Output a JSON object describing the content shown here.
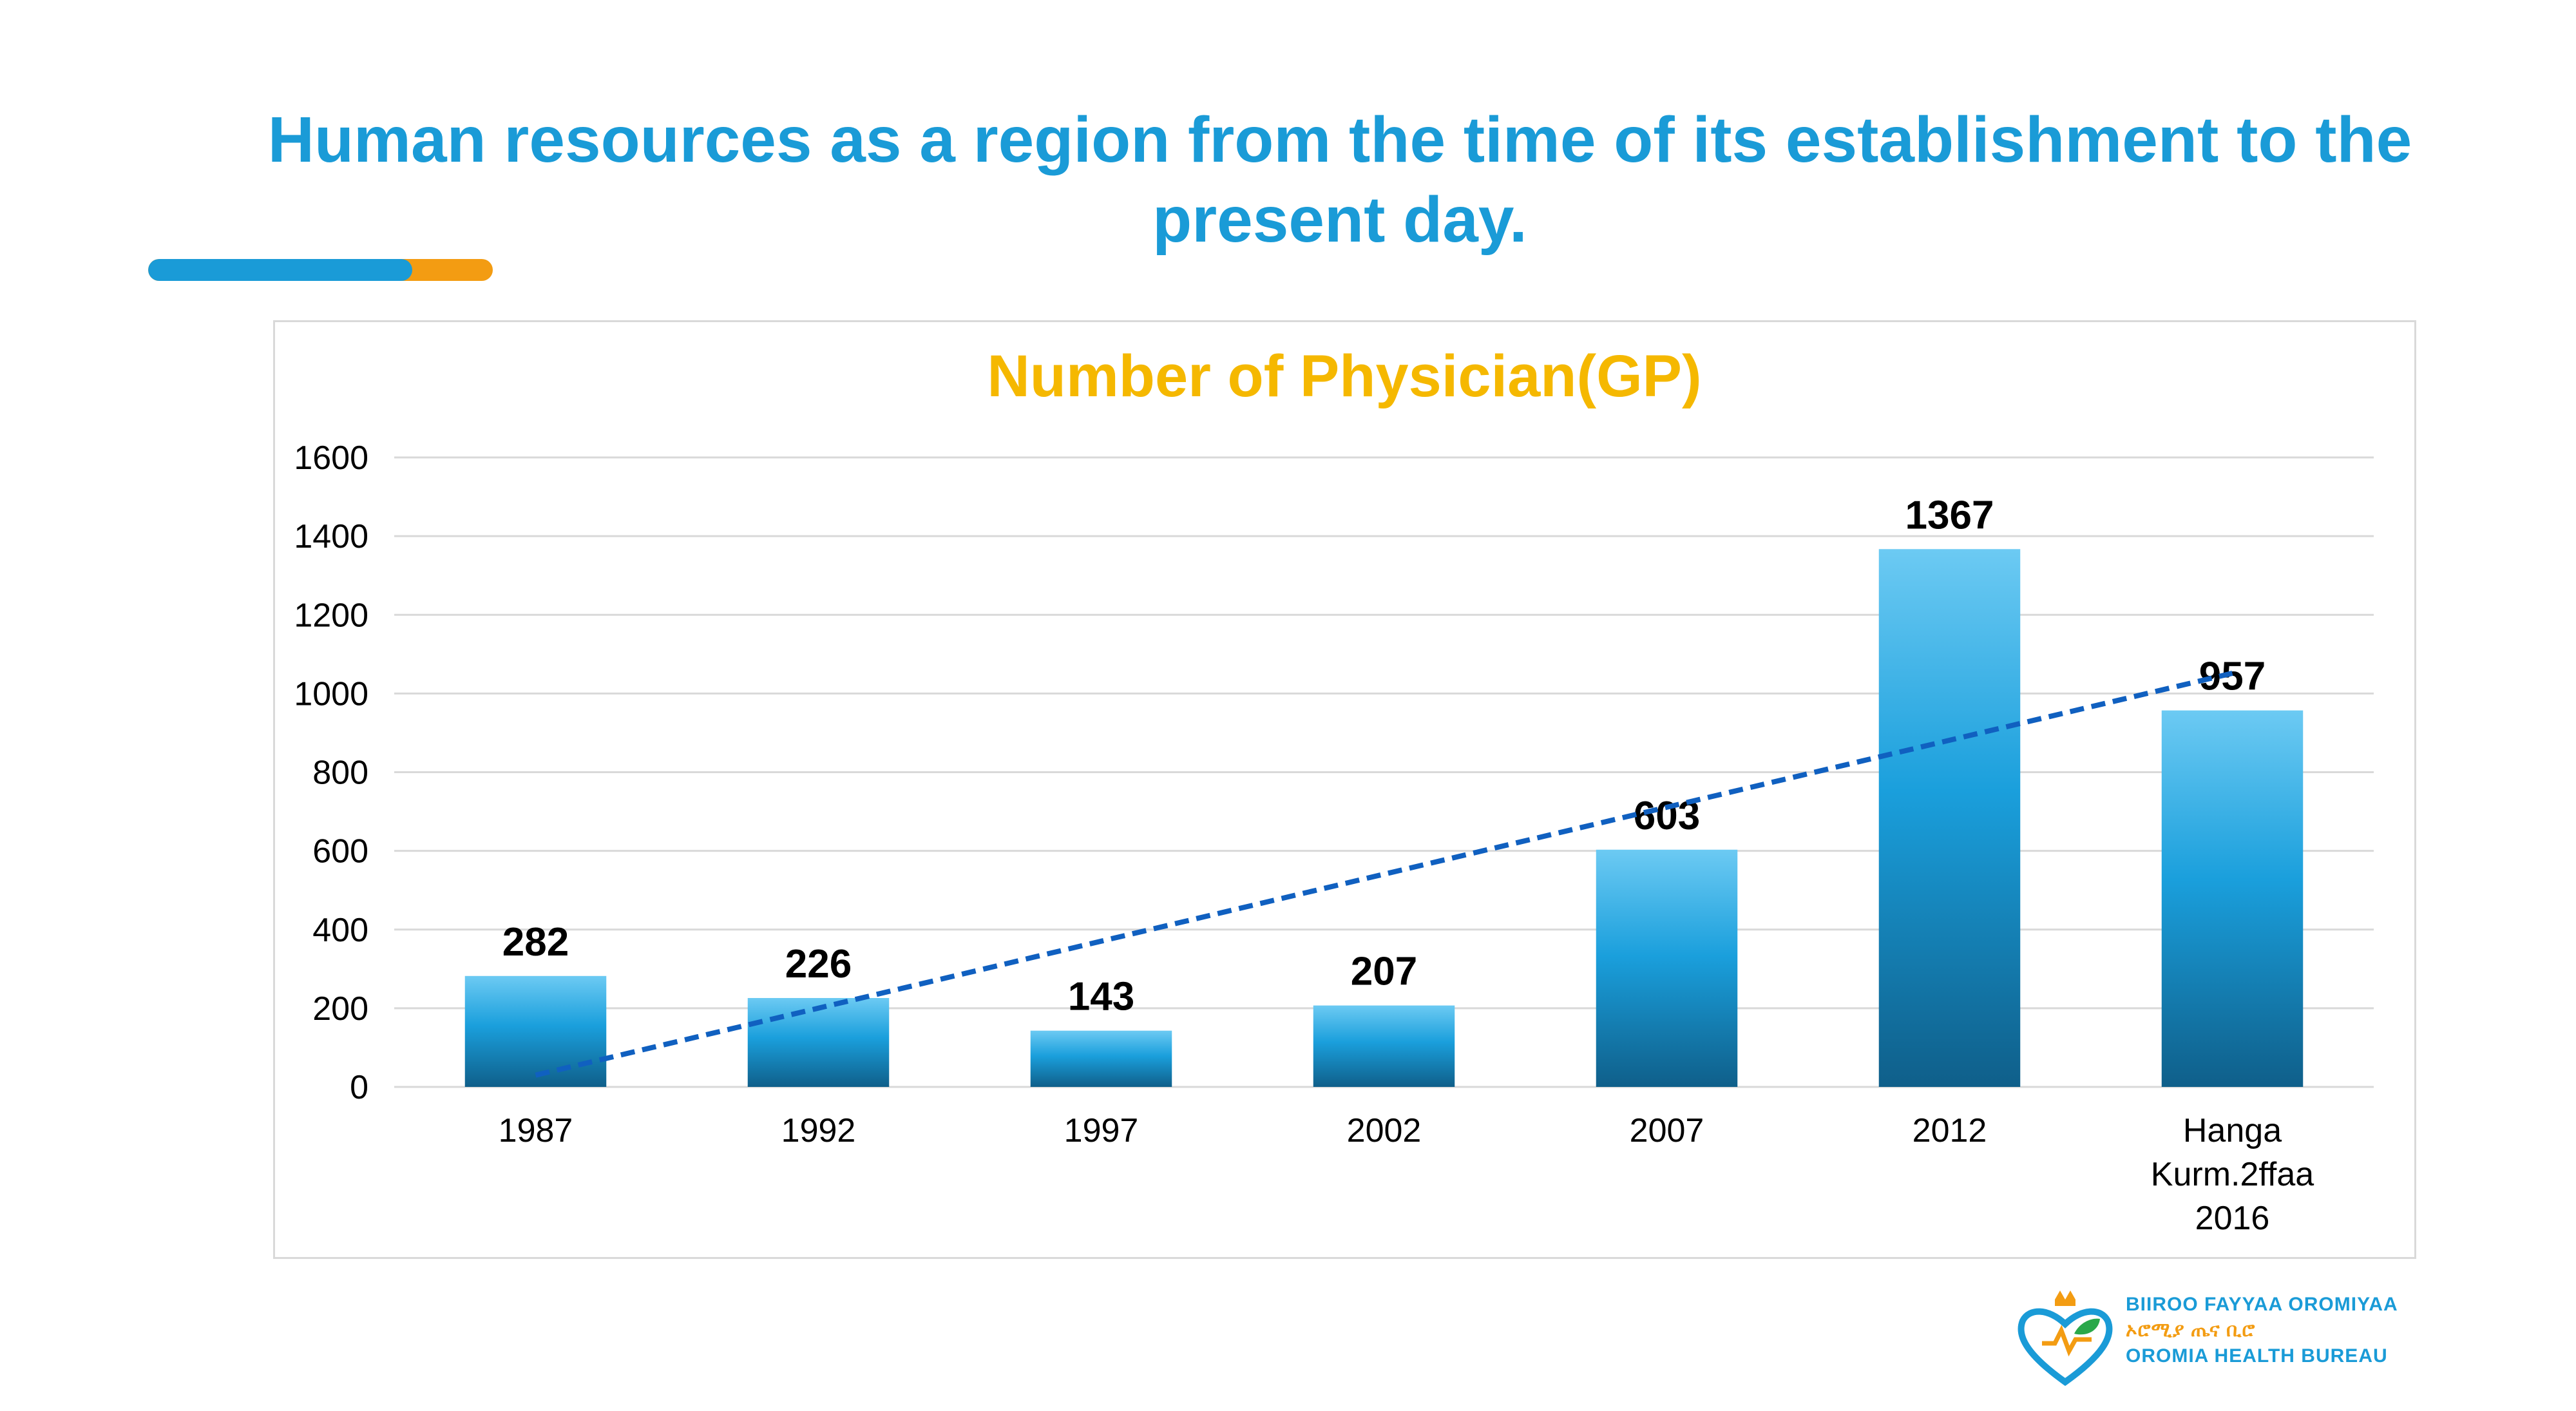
{
  "slide": {
    "title_line1": "Human resources as a region from the time of its establishment to the",
    "title_line2": "present day."
  },
  "logo": {
    "line1": "BIIROO FAYYAA OROMIYAA",
    "line2": "ኦሮሚያ ጤና ቢሮ",
    "line3": "OROMIA HEALTH BUREAU",
    "icon": "heart-leaf-crown-icon"
  },
  "colors": {
    "title": "#1a9bd7",
    "chart_title": "#f5b800",
    "bar_top": "#6ccaf3",
    "bar_mid": "#1a9fdc",
    "bar_bottom": "#0f5f8a",
    "trendline": "#1060c0",
    "accent_blue": "#1a9bd7",
    "accent_orange": "#f39c12"
  },
  "chart_data": {
    "type": "bar",
    "title": "Number of Physician(GP)",
    "categories": [
      [
        "1987"
      ],
      [
        "1992"
      ],
      [
        "1997"
      ],
      [
        "2002"
      ],
      [
        "2007"
      ],
      [
        "2012"
      ],
      [
        "Hanga",
        "Kurm.2ffaa",
        "2016"
      ]
    ],
    "values": [
      282,
      226,
      143,
      207,
      603,
      1367,
      957
    ],
    "data_labels": [
      "282",
      "226",
      "143",
      "207",
      "603",
      "1367",
      "957"
    ],
    "ylim": [
      0,
      1600
    ],
    "yticks": [
      0,
      200,
      400,
      600,
      800,
      1000,
      1200,
      1400,
      1600
    ],
    "grid": true,
    "trendline": {
      "type": "linear",
      "style": "dashed"
    },
    "xlabel": "",
    "ylabel": ""
  }
}
